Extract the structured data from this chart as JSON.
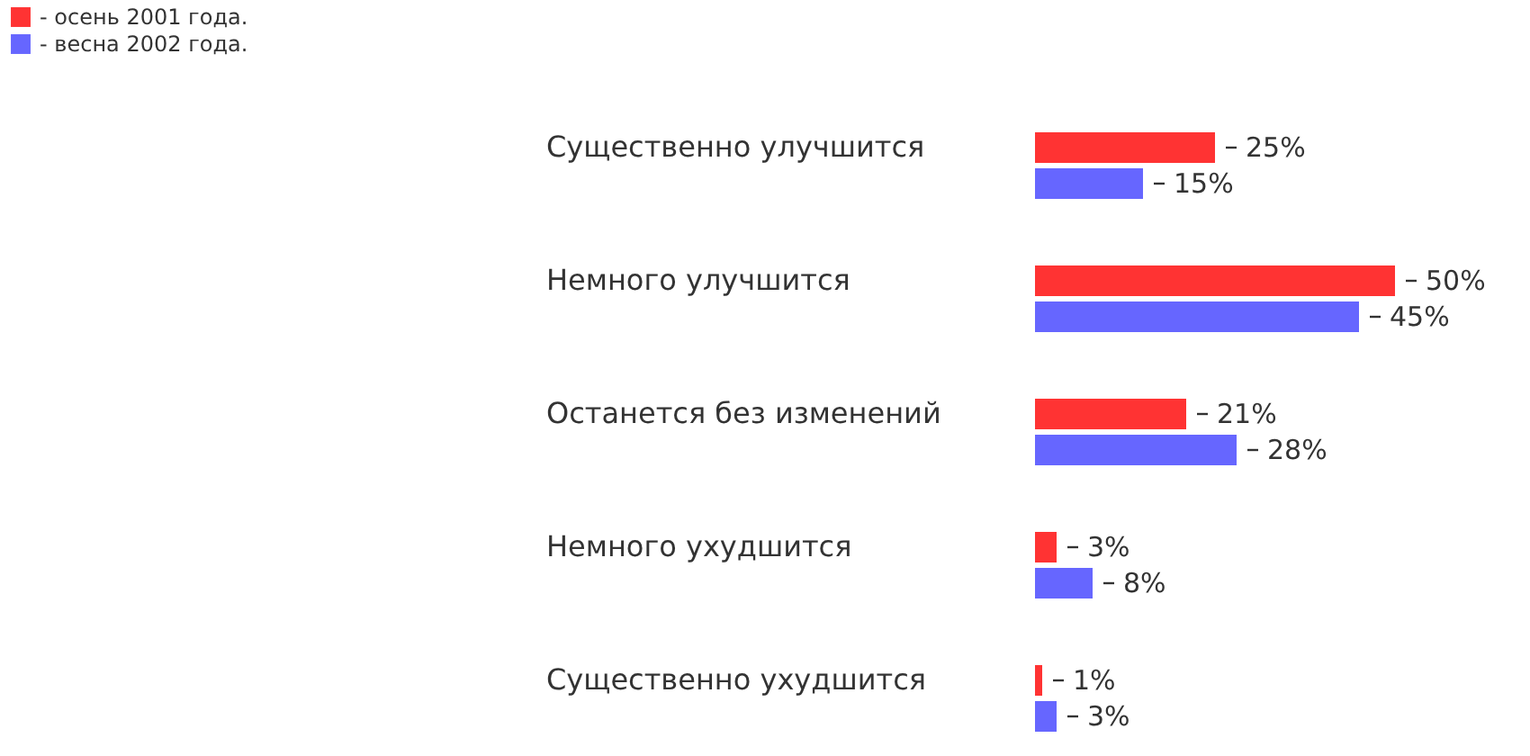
{
  "chart_data": {
    "type": "bar",
    "orientation": "horizontal",
    "legend": "top left",
    "categories": [
      "Существенно улучшится",
      "Немного улучшится",
      "Останется без изменений",
      "Немного ухудшится",
      "Существенно ухудшится"
    ],
    "series": [
      {
        "name": "- осень 2001 года.",
        "color": "#ff3333",
        "values": [
          25,
          50,
          21,
          3,
          1
        ],
        "value_labels": [
          "25%",
          "50%",
          "21%",
          "3%",
          "1%"
        ]
      },
      {
        "name": "- весна 2002 года.",
        "color": "#6666ff",
        "values": [
          15,
          45,
          28,
          8,
          3
        ],
        "value_labels": [
          "15%",
          "45%",
          "28%",
          "8%",
          "3%"
        ]
      }
    ]
  }
}
